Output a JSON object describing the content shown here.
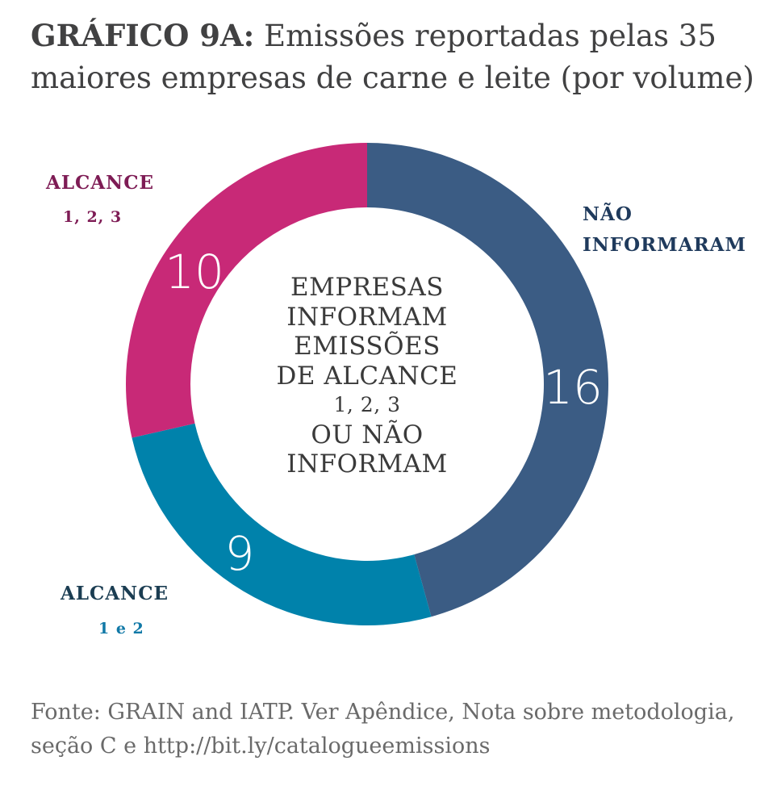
{
  "title": {
    "prefix": "GRÁFICO 9A:",
    "text": "Emissões reportadas pelas 35 maiores empresas de carne e leite (por volume)"
  },
  "chart_data": {
    "type": "pie",
    "donut": true,
    "total": 35,
    "slices": [
      {
        "label_line1": "NÃO",
        "label_line2": "INFORMARAM",
        "value": 16,
        "color": "#3b5c84"
      },
      {
        "label_line1": "ALCANCE",
        "label_line2": "1 e 2",
        "value": 9,
        "color": "#0082ab"
      },
      {
        "label_line1": "ALCANCE",
        "label_line2": "1, 2, 3",
        "value": 10,
        "color": "#c82977"
      }
    ],
    "center_lines": [
      "EMPRESAS",
      "INFORMAM",
      "EMISSÕES",
      "DE ALCANCE",
      "1, 2, 3",
      "OU NÃO",
      "INFORMAM"
    ]
  },
  "source": {
    "line1": "Fonte: GRAIN and IATP. Ver Apêndice, Nota sobre metodologia,",
    "line2": "seção C e http://bit.ly/catalogueemissions"
  }
}
